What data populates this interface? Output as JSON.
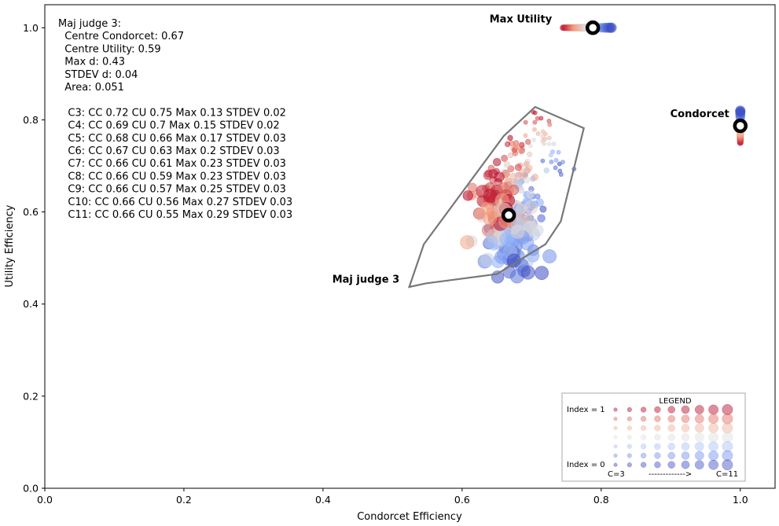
{
  "chart_data": {
    "type": "scatter",
    "xlabel": "Condorcet Efficiency",
    "ylabel": "Utility Efficiency",
    "xlim": [
      0.0,
      1.05
    ],
    "ylim": [
      0.0,
      1.05
    ],
    "x_ticks": [
      "0.0",
      "0.2",
      "0.4",
      "0.6",
      "0.8",
      "1.0"
    ],
    "y_ticks": [
      "0.0",
      "0.2",
      "0.4",
      "0.6",
      "0.8",
      "1.0"
    ],
    "grid": false,
    "info_lines": [
      "Maj judge 3:",
      "  Centre Condorcet: 0.67",
      "  Centre Utility: 0.59",
      "  Max d: 0.43",
      "  STDEV d: 0.04",
      "  Area: 0.051",
      "",
      "   C3: CC 0.72 CU 0.75 Max 0.13 STDEV 0.02",
      "   C4: CC 0.69 CU 0.7 Max 0.15 STDEV 0.02",
      "   C5: CC 0.68 CU 0.66 Max 0.17 STDEV 0.03",
      "   C6: CC 0.67 CU 0.63 Max 0.2 STDEV 0.03",
      "   C7: CC 0.66 CU 0.61 Max 0.23 STDEV 0.03",
      "   C8: CC 0.66 CU 0.59 Max 0.23 STDEV 0.03",
      "   C9: CC 0.66 CU 0.57 Max 0.25 STDEV 0.03",
      "   C10: CC 0.66 CU 0.56 Max 0.27 STDEV 0.03",
      "   C11: CC 0.66 CU 0.55 Max 0.29 STDEV 0.03"
    ],
    "annotations": [
      {
        "label": "Max Utility",
        "x": 0.788,
        "y": 1.0
      },
      {
        "label": "Condorcet",
        "x": 1.0,
        "y": 0.787
      },
      {
        "label": "Maj judge 3",
        "x": 0.667,
        "y": 0.593
      }
    ],
    "hull": [
      [
        0.524,
        0.437
      ],
      [
        0.545,
        0.53
      ],
      [
        0.66,
        0.765
      ],
      [
        0.705,
        0.828
      ],
      [
        0.775,
        0.782
      ],
      [
        0.742,
        0.58
      ],
      [
        0.72,
        0.53
      ],
      [
        0.65,
        0.465
      ],
      [
        0.548,
        0.445
      ]
    ],
    "centre": {
      "x": 0.667,
      "y": 0.593
    },
    "clusters": [
      {
        "name": "C3",
        "cc": 0.72,
        "cu": 0.75
      },
      {
        "name": "C4",
        "cc": 0.69,
        "cu": 0.7
      },
      {
        "name": "C5",
        "cc": 0.68,
        "cu": 0.66
      },
      {
        "name": "C6",
        "cc": 0.67,
        "cu": 0.63
      },
      {
        "name": "C7",
        "cc": 0.66,
        "cu": 0.61
      },
      {
        "name": "C8",
        "cc": 0.66,
        "cu": 0.59
      },
      {
        "name": "C9",
        "cc": 0.66,
        "cu": 0.57
      },
      {
        "name": "C10",
        "cc": 0.66,
        "cu": 0.56
      },
      {
        "name": "C11",
        "cc": 0.66,
        "cu": 0.55
      }
    ],
    "max_utility_band": {
      "x_from": 0.745,
      "x_to": 0.815,
      "y": 1.0
    },
    "condorcet_band": {
      "x": 1.0,
      "y_from": 0.75,
      "y_to": 0.82
    },
    "colors": {
      "low_index": "#3b4cc0",
      "mid": "#dddddd",
      "high_index": "#b40426",
      "hull": "#777777"
    },
    "legend": {
      "title": "LEGEND",
      "index_top": "Index = 1",
      "index_bottom": "Index = 0",
      "c_start": "C=3",
      "arrow": "------------->",
      "c_end": "C=11"
    }
  }
}
